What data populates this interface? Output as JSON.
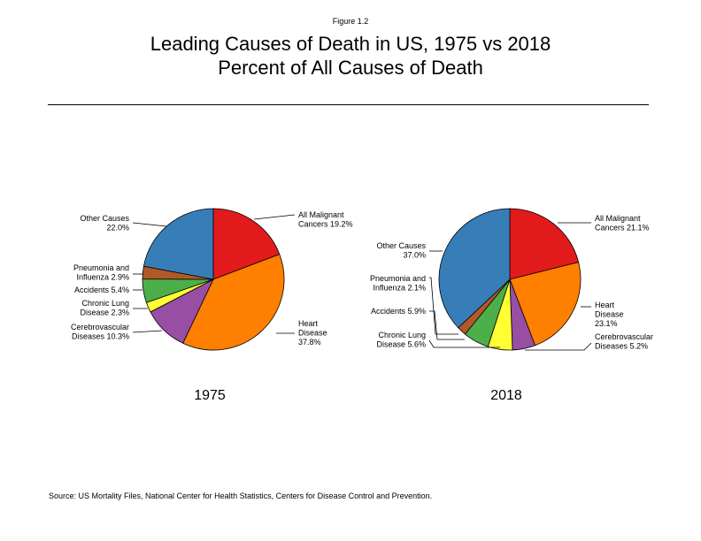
{
  "figure_label": "Figure 1.2",
  "title_line1": "Leading Causes of Death in US, 1975 vs 2018",
  "title_line2": "Percent of All Causes of Death",
  "source": "Source: US Mortality Files, National Center for Health Statistics, Centers for Disease Control and Prevention.",
  "colors": {
    "malignant": "#e31a1c",
    "heart": "#ff7f00",
    "cerebro": "#984ea3",
    "lung": "#ffff33",
    "accidents": "#4daf4a",
    "pneumonia": "#b15928",
    "other": "#377eb8"
  },
  "chart_data": [
    {
      "type": "pie",
      "title": "1975",
      "slices": [
        {
          "key": "malignant",
          "label": [
            "All Malignant",
            "Cancers 19.2%"
          ],
          "value": 19.2
        },
        {
          "key": "heart",
          "label": [
            "Heart",
            "Disease",
            "37.8%"
          ],
          "value": 37.8
        },
        {
          "key": "cerebro",
          "label": [
            "Cerebrovascular",
            "Diseases 10.3%"
          ],
          "value": 10.3
        },
        {
          "key": "lung",
          "label": [
            "Chronic Lung",
            "Disease 2.3%"
          ],
          "value": 2.3
        },
        {
          "key": "accidents",
          "label": [
            "Accidents 5.4%"
          ],
          "value": 5.4
        },
        {
          "key": "pneumonia",
          "label": [
            "Pneumonia and",
            "Influenza 2.9%"
          ],
          "value": 2.9
        },
        {
          "key": "other",
          "label": [
            "Other Causes",
            "22.0%"
          ],
          "value": 22.0
        }
      ]
    },
    {
      "type": "pie",
      "title": "2018",
      "slices": [
        {
          "key": "malignant",
          "label": [
            "All Malignant",
            "Cancers 21.1%"
          ],
          "value": 21.1
        },
        {
          "key": "heart",
          "label": [
            "Heart",
            "Disease",
            "23.1%"
          ],
          "value": 23.1
        },
        {
          "key": "cerebro",
          "label": [
            "Cerebrovascular",
            "Diseases 5.2%"
          ],
          "value": 5.2
        },
        {
          "key": "lung",
          "label": [
            "Chronic Lung",
            "Disease 5.6%"
          ],
          "value": 5.6
        },
        {
          "key": "accidents",
          "label": [
            "Accidents 5.9%"
          ],
          "value": 5.9
        },
        {
          "key": "pneumonia",
          "label": [
            "Pneumonia and",
            "Influenza 2.1%"
          ],
          "value": 2.1
        },
        {
          "key": "other",
          "label": [
            "Other Causes",
            "37.0%"
          ],
          "value": 37.0
        }
      ]
    }
  ]
}
